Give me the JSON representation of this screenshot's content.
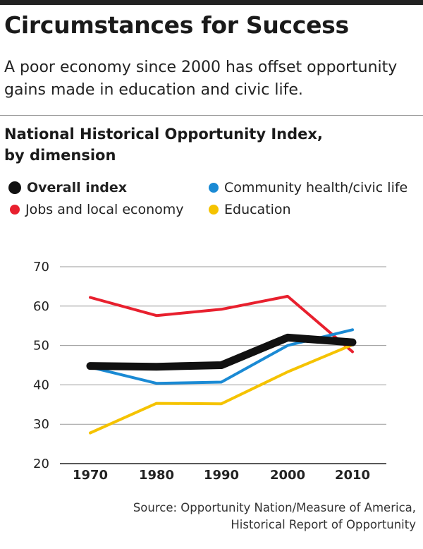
{
  "header": {
    "title": "Circumstances for Success",
    "subtitle_line1": "A poor economy since 2000 has offset opportunity",
    "subtitle_line2": "gains made in education and civic life."
  },
  "chart_title_line1": "National Historical Opportunity Index,",
  "chart_title_line2": "by dimension",
  "legend": [
    {
      "label": "Overall index",
      "color": "#111111"
    },
    {
      "label": "Jobs and local economy",
      "color": "#e8202e"
    },
    {
      "label": "Community health/civic life",
      "color": "#1a8ad4"
    },
    {
      "label": "Education",
      "color": "#f5c300"
    }
  ],
  "source_line1": "Source: Opportunity Nation/Measure of America,",
  "source_line2": "Historical Report of Opportunity",
  "chart_data": {
    "type": "line",
    "title": "National Historical Opportunity Index, by dimension",
    "x": [
      1970,
      1980,
      1990,
      2000,
      2010
    ],
    "x_tick_labels": [
      "1970",
      "1980",
      "1990",
      "2000",
      "2010"
    ],
    "ylim": [
      20,
      70
    ],
    "y_ticks": [
      20,
      30,
      40,
      50,
      60,
      70
    ],
    "y_tick_labels": [
      "20",
      "30",
      "40",
      "50",
      "60",
      "70"
    ],
    "grid": true,
    "legend_position": "top",
    "series": [
      {
        "name": "Jobs and local economy",
        "color": "#e8202e",
        "values": [
          62.2,
          57.6,
          59.2,
          62.5,
          48.4
        ]
      },
      {
        "name": "Community health/civic life",
        "color": "#1a8ad4",
        "values": [
          44.5,
          40.4,
          40.7,
          50.0,
          54.0
        ]
      },
      {
        "name": "Education",
        "color": "#f5c300",
        "values": [
          27.8,
          35.3,
          35.2,
          43.3,
          50.2
        ]
      },
      {
        "name": "Overall index",
        "color": "#111111",
        "values": [
          44.8,
          44.6,
          45.0,
          52.0,
          50.8
        ]
      }
    ]
  }
}
